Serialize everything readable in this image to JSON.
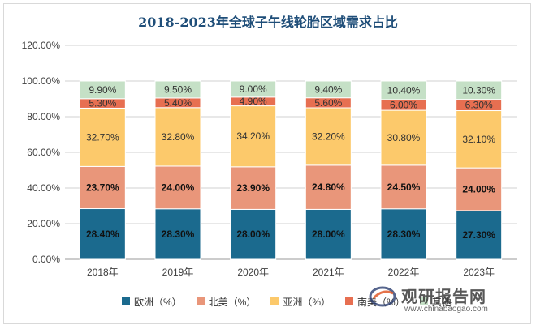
{
  "chart_data": {
    "type": "bar",
    "stacked": true,
    "title": "2018-2023年全球子午线轮胎区域需求占比",
    "categories": [
      "2018年",
      "2019年",
      "2020年",
      "2021年",
      "2022年",
      "2023年"
    ],
    "ylim": [
      0,
      1.2
    ],
    "yticks": [
      "0.00%",
      "20.00%",
      "40.00%",
      "60.00%",
      "80.00%",
      "100.00%",
      "120.00%"
    ],
    "series": [
      {
        "name": "欧洲（%）",
        "color": "#1b6a8e",
        "values": [
          0.284,
          0.283,
          0.28,
          0.28,
          0.283,
          0.273
        ],
        "labels": [
          "28.40%",
          "28.30%",
          "28.00%",
          "28.00%",
          "28.30%",
          "27.30%"
        ],
        "label_bold": true
      },
      {
        "name": "北美（%）",
        "color": "#e9967a",
        "values": [
          0.237,
          0.24,
          0.239,
          0.248,
          0.245,
          0.24
        ],
        "labels": [
          "23.70%",
          "24.00%",
          "23.90%",
          "24.80%",
          "24.50%",
          "24.00%"
        ],
        "label_bold": true
      },
      {
        "name": "亚洲（%）",
        "color": "#fcc96b",
        "values": [
          0.327,
          0.328,
          0.342,
          0.322,
          0.308,
          0.321
        ],
        "labels": [
          "32.70%",
          "32.80%",
          "34.20%",
          "32.20%",
          "30.80%",
          "32.10%"
        ],
        "label_bold": false
      },
      {
        "name": "南美（%）",
        "color": "#e76f51",
        "values": [
          0.053,
          0.054,
          0.049,
          0.056,
          0.06,
          0.063
        ],
        "labels": [
          "5.30%",
          "5.40%",
          "4.90%",
          "5.60%",
          "6.00%",
          "6.30%"
        ],
        "label_bold": false
      },
      {
        "name": "其他",
        "color": "#c5e0c6",
        "values": [
          0.099,
          0.095,
          0.09,
          0.094,
          0.104,
          0.103
        ],
        "labels": [
          "9.90%",
          "9.50%",
          "9.00%",
          "9.40%",
          "10.40%",
          "10.30%"
        ],
        "label_bold": false
      }
    ],
    "grid": "horizontal",
    "legend_position": "bottom"
  },
  "watermark": {
    "name": "观研报告网",
    "url": "www.chinabaogao.com"
  }
}
